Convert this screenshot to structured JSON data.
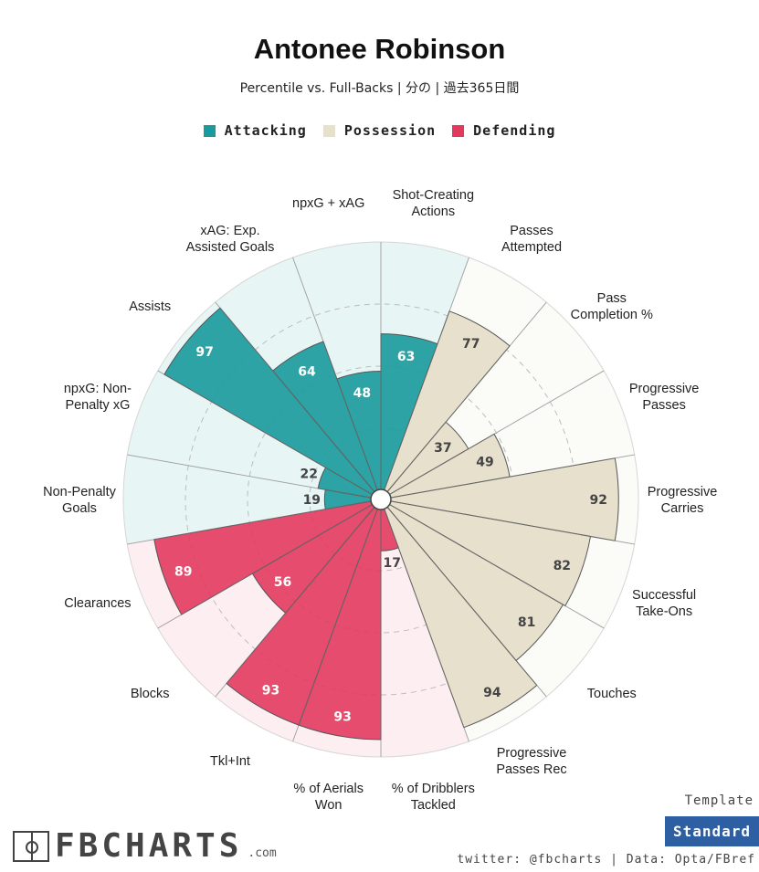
{
  "chart_data": {
    "type": "radar",
    "title": "Antonee Robinson",
    "subtitle": "Percentile vs. Full-Backs | 分の | 過去365日間",
    "legend": [
      {
        "name": "Attacking",
        "color": "#1a9a9c"
      },
      {
        "name": "Possession",
        "color": "#e6e0cd"
      },
      {
        "name": "Defending",
        "color": "#e23a5e"
      }
    ],
    "range": [
      0,
      100
    ],
    "series": [
      {
        "name": "Attacking",
        "color": "#1a9a9c",
        "bg": "#e8f5f5",
        "categories": [
          "Non-Penalty Goals",
          "npxG: Non-Penalty xG",
          "Assists",
          "xAG: Exp. Assisted Goals",
          "npxG + xAG",
          "Shot-Creating Actions"
        ],
        "values": [
          19,
          22,
          97,
          64,
          48,
          63
        ]
      },
      {
        "name": "Possession",
        "color": "#e6e0cd",
        "bg": "#fbfbf8",
        "categories": [
          "Passes Attempted",
          "Pass Completion %",
          "Progressive Passes",
          "Progressive Carries",
          "Successful Take-Ons",
          "Touches",
          "Progressive Passes Rec"
        ],
        "values": [
          77,
          37,
          49,
          92,
          82,
          81,
          94
        ]
      },
      {
        "name": "Defending",
        "color": "#e23a5e",
        "bg": "#fdeef1",
        "categories": [
          "% of Dribblers Tackled",
          "% of Aerials Won",
          "Tkl+Int",
          "Blocks",
          "Clearances"
        ],
        "values": [
          17,
          93,
          93,
          56,
          89
        ]
      }
    ],
    "order": [
      {
        "label": "Shot-Creating Actions",
        "group": 0,
        "value": 63
      },
      {
        "label": "Passes Attempted",
        "group": 1,
        "value": 77
      },
      {
        "label": "Pass Completion %",
        "group": 1,
        "value": 37
      },
      {
        "label": "Progressive Passes",
        "group": 1,
        "value": 49
      },
      {
        "label": "Progressive Carries",
        "group": 1,
        "value": 92
      },
      {
        "label": "Successful Take-Ons",
        "group": 1,
        "value": 82
      },
      {
        "label": "Touches",
        "group": 1,
        "value": 81
      },
      {
        "label": "Progressive Passes Rec",
        "group": 1,
        "value": 94
      },
      {
        "label": "% of Dribblers Tackled",
        "group": 2,
        "value": 17
      },
      {
        "label": "% of Aerials Won",
        "group": 2,
        "value": 93
      },
      {
        "label": "Tkl+Int",
        "group": 2,
        "value": 93
      },
      {
        "label": "Blocks",
        "group": 2,
        "value": 56
      },
      {
        "label": "Clearances",
        "group": 2,
        "value": 89
      },
      {
        "label": "Non-Penalty Goals",
        "group": 0,
        "value": 19
      },
      {
        "label": "npxG: Non-Penalty xG",
        "group": 0,
        "value": 22
      },
      {
        "label": "Assists",
        "group": 0,
        "value": 97
      },
      {
        "label": "xAG: Exp. Assisted Goals",
        "group": 0,
        "value": 64
      },
      {
        "label": "npxG + xAG",
        "group": 0,
        "value": 48
      }
    ],
    "label_lines": [
      [
        "Shot-Creating",
        "Actions"
      ],
      [
        "Passes",
        "Attempted"
      ],
      [
        "Pass",
        "Completion %"
      ],
      [
        "Progressive",
        "Passes"
      ],
      [
        "Progressive",
        "Carries"
      ],
      [
        "Successful",
        "Take-Ons"
      ],
      [
        "Touches"
      ],
      [
        "Progressive",
        "Passes Rec"
      ],
      [
        "% of Dribblers",
        "Tackled"
      ],
      [
        "% of Aerials",
        "Won"
      ],
      [
        "Tkl+Int"
      ],
      [
        "Blocks"
      ],
      [
        "Clearances"
      ],
      [
        "Non-Penalty",
        "Goals"
      ],
      [
        "npxG: Non-",
        "Penalty xG"
      ],
      [
        "Assists"
      ],
      [
        "xAG: Exp.",
        "Assisted Goals"
      ],
      [
        "npxG + xAG"
      ]
    ],
    "gridlines": [
      25,
      50,
      75
    ]
  },
  "footer": {
    "logo": "FBCHARTS",
    "logo_suffix": ".com",
    "template_label": "Template",
    "template_value": "Standard",
    "credits": "twitter: @fbcharts | Data: Opta/FBref"
  }
}
